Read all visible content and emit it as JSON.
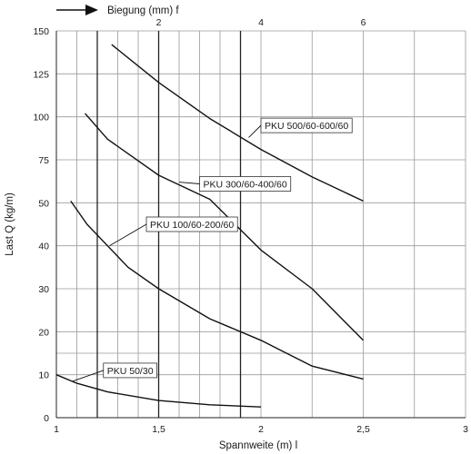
{
  "chart_data": {
    "type": "line",
    "title": "",
    "xlabel": "Spannweite (m) l",
    "ylabel": "Last Q (kg/m)",
    "top_axis_label": "Biegung (mm) f",
    "xlim": [
      1,
      3
    ],
    "ylim": [
      0,
      150
    ],
    "x_ticks": [
      {
        "value": 1,
        "label": "1"
      },
      {
        "value": 1.5,
        "label": "1,5"
      },
      {
        "value": 2,
        "label": "2"
      },
      {
        "value": 2.5,
        "label": "2,5"
      },
      {
        "value": 3,
        "label": "3"
      }
    ],
    "y_ticks": [
      0,
      10,
      20,
      30,
      40,
      50,
      75,
      100,
      125,
      150
    ],
    "top_ticks": [
      {
        "x": 1.5,
        "label": "2"
      },
      {
        "x": 2,
        "label": "4"
      },
      {
        "x": 2.5,
        "label": "6"
      }
    ],
    "vertical_gridlines_x": [
      1.1,
      1.2,
      1.3,
      1.4,
      1.5,
      1.6,
      1.7,
      1.8,
      1.9,
      2,
      2.25,
      2.5,
      2.75,
      3
    ],
    "bold_vertical_lines_x": [
      1.2,
      1.5,
      1.9
    ],
    "extra_horizontal_lines_y": [
      15
    ],
    "grid": true,
    "series": [
      {
        "name": "PKU 500/60-600/60",
        "x": [
          1.27,
          1.5,
          1.75,
          2.0,
          2.25,
          2.5
        ],
        "y": [
          142,
          120,
          99,
          81,
          65,
          51
        ]
      },
      {
        "name": "PKU 300/60-400/60",
        "x": [
          1.14,
          1.25,
          1.5,
          1.75,
          2.0,
          2.25,
          2.5
        ],
        "y": [
          102,
          87,
          66,
          52,
          39,
          30,
          18
        ]
      },
      {
        "name": "PKU 100/60-200/60",
        "x": [
          1.07,
          1.15,
          1.35,
          1.5,
          1.75,
          2.0,
          2.25,
          2.5
        ],
        "y": [
          51,
          45,
          35,
          30,
          23,
          18,
          12,
          9
        ]
      },
      {
        "name": "PKU 50/30",
        "x": [
          1.0,
          1.1,
          1.25,
          1.5,
          1.75,
          2.0
        ],
        "y": [
          10,
          8,
          6,
          4,
          3,
          2.5
        ]
      }
    ],
    "annotations": [
      {
        "series": 0,
        "text": "PKU 500/60-600/60",
        "anchor": [
          1.94,
          88
        ],
        "box_at": [
          2.0,
          95
        ]
      },
      {
        "series": 1,
        "text": "PKU 300/60-400/60",
        "anchor": [
          1.6,
          62
        ],
        "box_at": [
          1.7,
          61
        ]
      },
      {
        "series": 2,
        "text": "PKU 100/60-200/60",
        "anchor": [
          1.26,
          40
        ],
        "box_at": [
          1.44,
          45
        ]
      },
      {
        "series": 3,
        "text": "PKU 50/30",
        "anchor": [
          1.08,
          8.5
        ],
        "box_at": [
          1.23,
          11
        ]
      }
    ]
  }
}
